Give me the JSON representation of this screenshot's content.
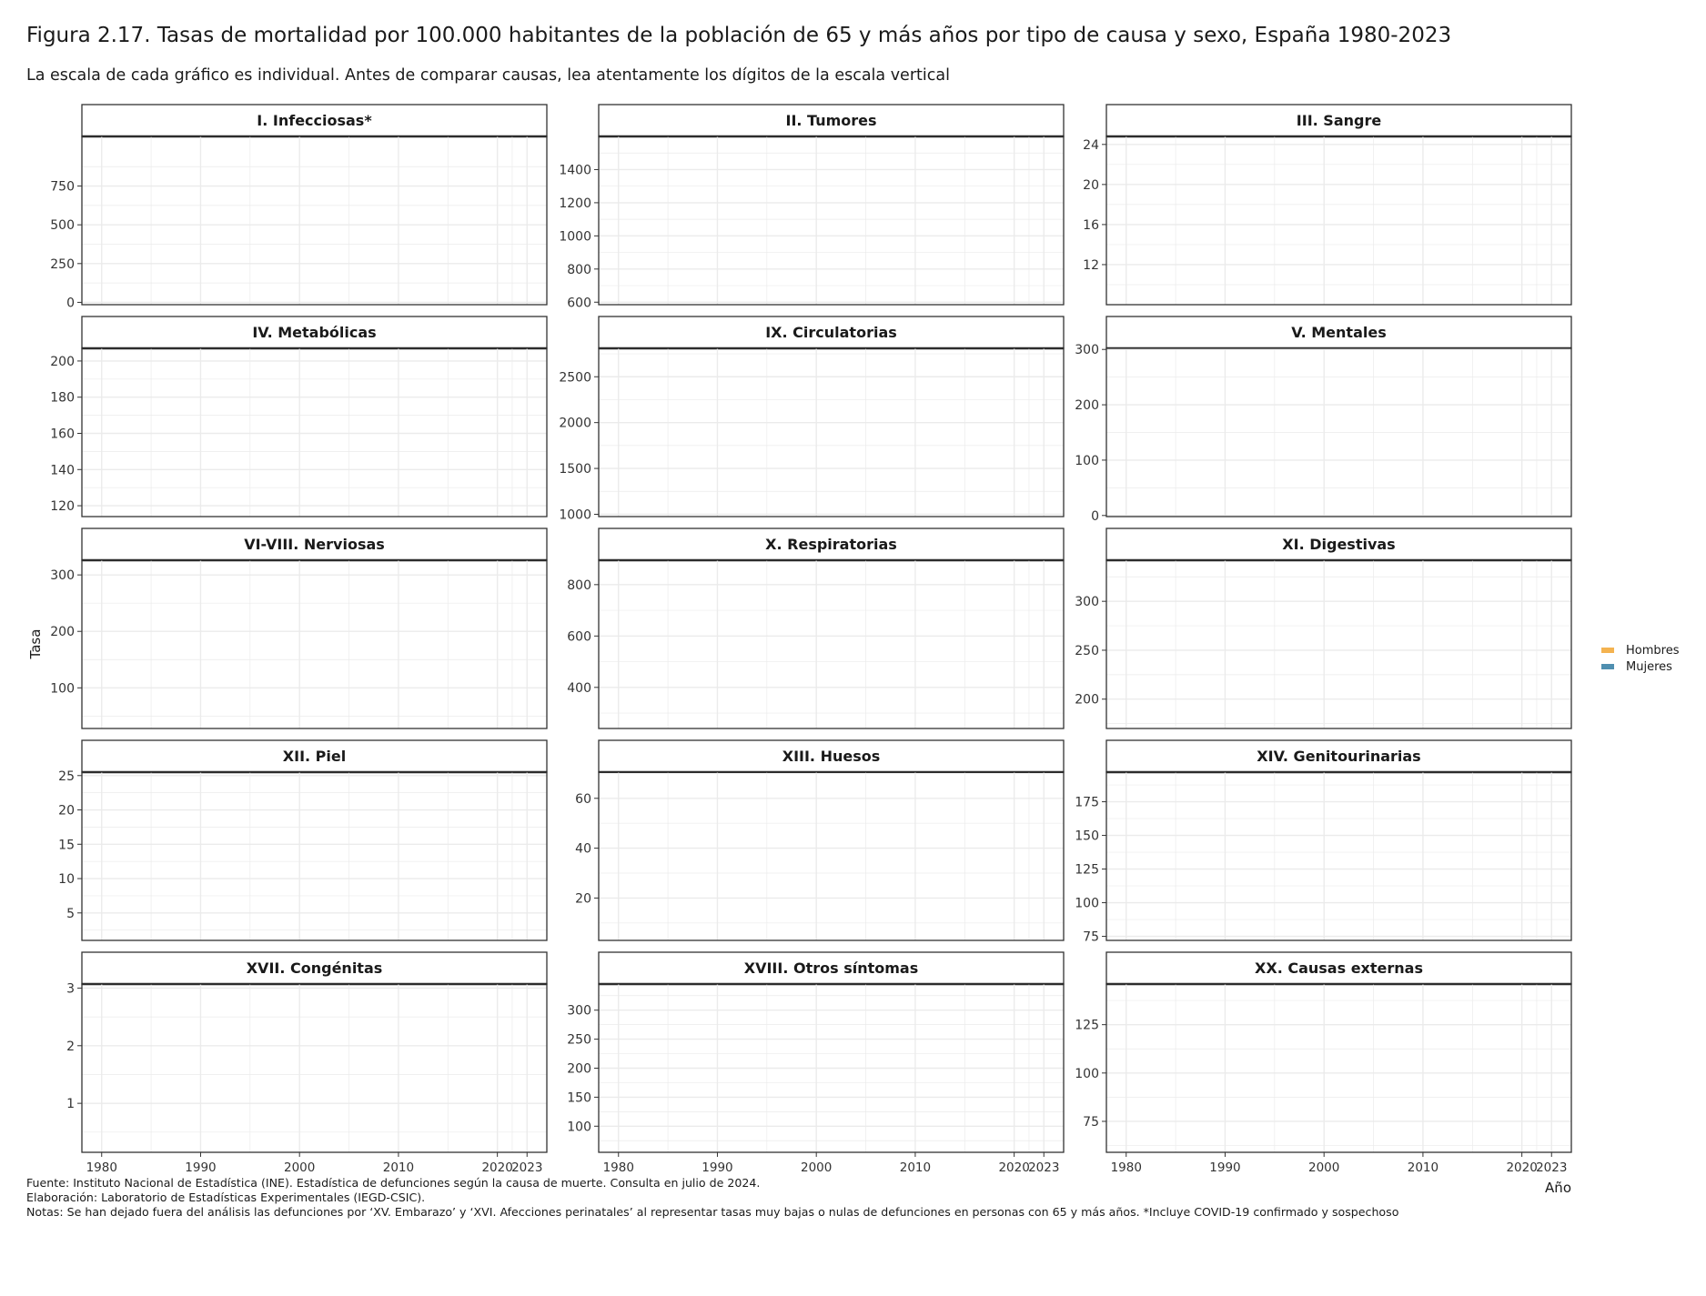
{
  "title": "Figura 2.17. Tasas de mortalidad por 100.000 habitantes de la población de 65 y más años por tipo de causa y sexo, España 1980-2023",
  "subtitle": "La escala de cada gráfico es individual. Antes de comparar causas, lea atentamente los dígitos de la escala vertical",
  "footnotes": {
    "source": "Fuente: Instituto Nacional de Estadística (INE). Estadística de defunciones según la causa de muerte. Consulta en julio de 2024.",
    "elaboration": "Elaboración: Laboratorio de Estadísticas Experimentales (IEGD-CSIC).",
    "notes": "Notas: Se han dejado fuera del análisis las defunciones por ‘XV. Embarazo’ y ‘XVI. Afecciones perinatales’ al representar tasas muy bajas o nulas de defunciones en personas con 65 y más años. *Incluye COVID-19 confirmado y sospechoso"
  },
  "legend": [
    {
      "label": "Hombres",
      "color": "#f4b350"
    },
    {
      "label": "Mujeres",
      "color": "#4f8fb0"
    }
  ],
  "chart_data": {
    "type": "line",
    "xlabel": "Año",
    "ylabel": "Tasa",
    "x_ticks": [
      1980,
      1990,
      2000,
      2010,
      2020,
      2023
    ],
    "x_tick_labels": [
      "1980",
      "1990",
      "2000",
      "2010",
      "2020",
      "2023"
    ],
    "xlim": [
      1978,
      2025
    ],
    "grid": true,
    "legend_position": "right",
    "series_names": [
      "Hombres",
      "Mujeres"
    ],
    "panels": [
      {
        "title": "I. Infecciosas*",
        "ylim": [
          -15,
          1070
        ],
        "y_ticks": [
          0,
          250,
          500,
          750
        ],
        "series": []
      },
      {
        "title": "II. Tumores",
        "ylim": [
          585,
          1600
        ],
        "y_ticks": [
          600,
          800,
          1000,
          1200,
          1400
        ],
        "series": []
      },
      {
        "title": "III. Sangre",
        "ylim": [
          8,
          24.8
        ],
        "y_ticks": [
          12,
          16,
          20,
          24
        ],
        "series": []
      },
      {
        "title": "IV. Metabólicas",
        "ylim": [
          114,
          207
        ],
        "y_ticks": [
          120,
          140,
          160,
          180,
          200
        ],
        "series": []
      },
      {
        "title": "IX. Circulatorias",
        "ylim": [
          975,
          2810
        ],
        "y_ticks": [
          1000,
          1500,
          2000,
          2500
        ],
        "series": []
      },
      {
        "title": "V. Mentales",
        "ylim": [
          -2,
          302
        ],
        "y_ticks": [
          0,
          100,
          200,
          300
        ],
        "series": []
      },
      {
        "title": "VI-VIII. Nerviosas",
        "ylim": [
          28,
          326
        ],
        "y_ticks": [
          100,
          200,
          300
        ],
        "series": []
      },
      {
        "title": "X. Respiratorias",
        "ylim": [
          240,
          895
        ],
        "y_ticks": [
          400,
          600,
          800
        ],
        "series": []
      },
      {
        "title": "XI. Digestivas",
        "ylim": [
          170,
          342
        ],
        "y_ticks": [
          200,
          250,
          300
        ],
        "series": []
      },
      {
        "title": "XII. Piel",
        "ylim": [
          1,
          25.5
        ],
        "y_ticks": [
          5,
          10,
          15,
          20,
          25
        ],
        "series": []
      },
      {
        "title": "XIII. Huesos",
        "ylim": [
          3,
          70.5
        ],
        "y_ticks": [
          20,
          40,
          60
        ],
        "series": []
      },
      {
        "title": "XIV. Genitourinarias",
        "ylim": [
          72,
          197
        ],
        "y_ticks": [
          75,
          100,
          125,
          150,
          175
        ],
        "series": []
      },
      {
        "title": "XVII. Congénitas",
        "ylim": [
          0.15,
          3.07
        ],
        "y_ticks": [
          1,
          2,
          3
        ],
        "series": []
      },
      {
        "title": "XVIII. Otros síntomas",
        "ylim": [
          55,
          345
        ],
        "y_ticks": [
          100,
          150,
          200,
          250,
          300
        ],
        "series": []
      },
      {
        "title": "XX. Causas externas",
        "ylim": [
          59,
          146
        ],
        "y_ticks": [
          75,
          100,
          125
        ],
        "series": []
      }
    ]
  }
}
